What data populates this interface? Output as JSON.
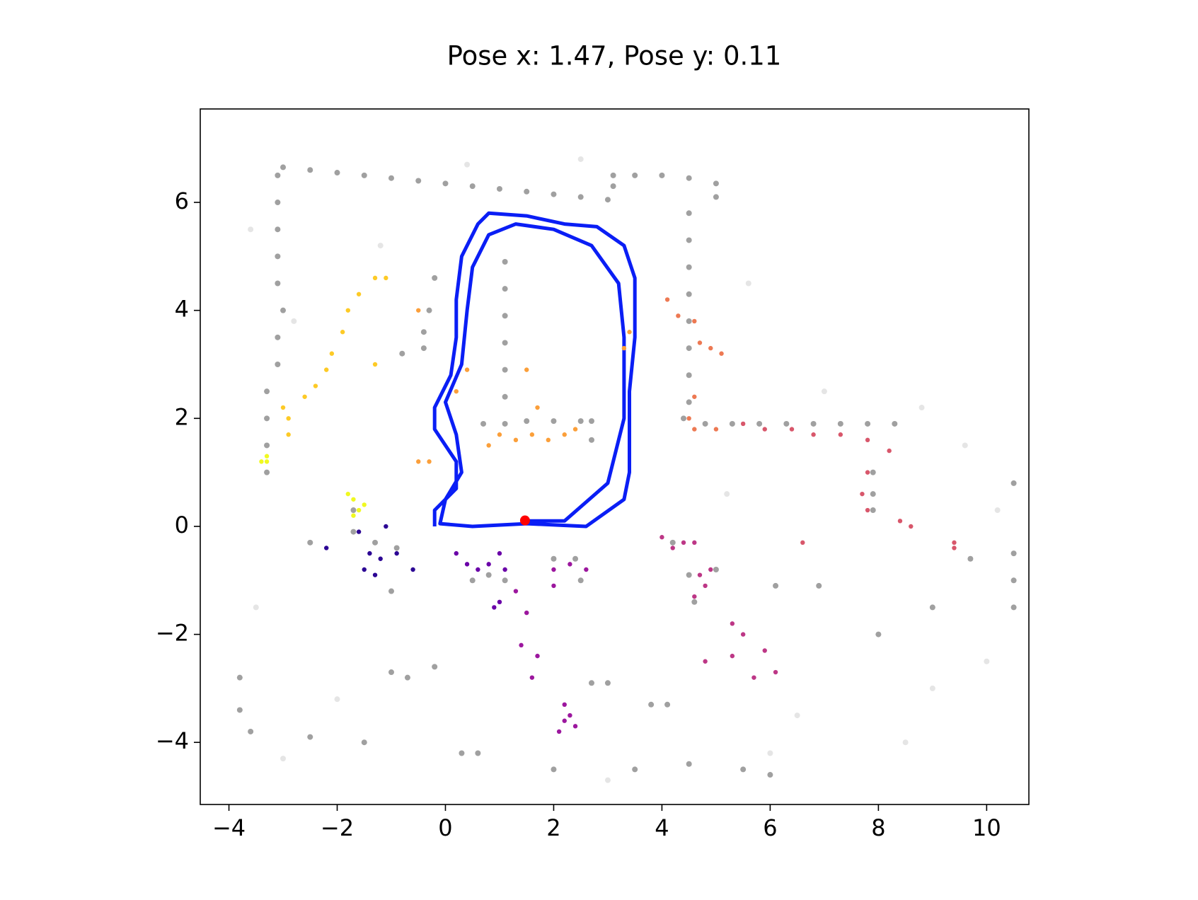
{
  "chart_data": {
    "type": "scatter",
    "title": "Pose x: 1.47, Pose y: 0.11",
    "xlim": [
      -4.53,
      10.78
    ],
    "ylim": [
      -5.15,
      7.73
    ],
    "xticks": [
      {
        "value": -4,
        "label": "−4"
      },
      {
        "value": -2,
        "label": "−2"
      },
      0,
      2,
      4,
      6,
      8,
      10
    ],
    "yticks": [
      {
        "value": -4,
        "label": "−4"
      },
      {
        "value": -2,
        "label": "−2"
      },
      0,
      2,
      4,
      6
    ],
    "series": [
      {
        "kind": "map",
        "color": "#dcdcdc",
        "x": [
          -3.6,
          -2.8,
          -1.2,
          0.4,
          2.5,
          5.6,
          7.0,
          8.8,
          9.6,
          10.2,
          -3.5,
          -2.0,
          6.5,
          9.0,
          10.0,
          -3.0,
          3.0,
          6.0,
          8.5,
          5.2
        ],
        "y": [
          5.5,
          3.8,
          5.2,
          6.7,
          6.8,
          4.5,
          2.5,
          2.2,
          1.5,
          0.3,
          -1.5,
          -3.2,
          -3.5,
          -3.0,
          -2.5,
          -4.3,
          -4.7,
          -4.2,
          -4.0,
          0.6
        ]
      },
      {
        "kind": "map",
        "color": "#808080",
        "x": [
          -3,
          -2.5,
          -2,
          -1.5,
          -1,
          -0.5,
          0,
          0.5,
          1,
          1.5,
          2,
          2.5,
          3.0,
          3.1,
          3.1,
          3.5,
          4.0,
          4.5,
          5.0,
          5.0,
          -3.1,
          -3.1,
          -3.1,
          -3.1,
          -3.1,
          -3.0,
          -3.1,
          -3.1,
          -3.3,
          -3.3,
          -3.3,
          -3.3,
          4.5,
          4.5,
          4.5,
          4.5,
          4.5,
          4.5,
          4.5,
          4.5,
          4.4,
          4.8,
          5.3,
          5.8,
          6.3,
          6.8,
          7.3,
          7.8,
          8.3,
          1.1,
          1.1,
          1.1,
          1.1,
          1.1,
          1.1,
          1.1,
          0.7,
          1.5,
          2.0,
          2.5,
          2.7,
          2.7,
          7.9,
          7.9,
          7.9,
          -0.4,
          -0.4,
          -0.8,
          -0.3,
          -0.2,
          -1.7,
          -1.7,
          -1.3,
          -0.9,
          -2.5,
          -1.0,
          0.5,
          0.8,
          1.1,
          2.0,
          2.4,
          2.5,
          4.2,
          4.5,
          4.6,
          5.0,
          6.1,
          -1.0,
          -0.7,
          -0.2,
          2.7,
          3.0,
          3.8,
          4.1,
          -3.8,
          -3.8,
          -3.6,
          -2.5,
          -1.5,
          0.3,
          0.6,
          2.0,
          3.5,
          4.5,
          5.5,
          6.0,
          10.5,
          10.5,
          10.5,
          10.5,
          9.7,
          9.0,
          8.0,
          6.9
        ],
        "y": [
          6.65,
          6.6,
          6.55,
          6.5,
          6.45,
          6.4,
          6.35,
          6.3,
          6.25,
          6.2,
          6.15,
          6.1,
          6.05,
          6.3,
          6.5,
          6.5,
          6.5,
          6.45,
          6.35,
          6.1,
          6.5,
          6.0,
          5.5,
          5.0,
          4.5,
          4.0,
          3.5,
          3.0,
          2.5,
          2.0,
          1.5,
          1.0,
          5.8,
          5.3,
          4.8,
          4.3,
          3.8,
          3.3,
          2.8,
          2.3,
          2.0,
          1.9,
          1.9,
          1.9,
          1.9,
          1.9,
          1.9,
          1.9,
          1.9,
          4.9,
          4.4,
          3.9,
          3.4,
          2.9,
          2.4,
          1.9,
          1.9,
          1.95,
          1.95,
          1.95,
          1.95,
          1.6,
          1.0,
          0.6,
          0.3,
          3.6,
          3.3,
          3.2,
          4.0,
          4.6,
          0.3,
          -0.1,
          -0.3,
          -0.4,
          -0.3,
          -1.2,
          -1.0,
          -0.9,
          -1.0,
          -0.6,
          -0.6,
          -1.0,
          -0.3,
          -0.9,
          -1.4,
          -0.8,
          -1.1,
          -2.7,
          -2.8,
          -2.6,
          -2.9,
          -2.9,
          -3.3,
          -3.3,
          -2.8,
          -3.4,
          -3.8,
          -3.9,
          -4.0,
          -4.2,
          -4.2,
          -4.5,
          -4.5,
          -4.4,
          -4.5,
          -4.6,
          -0.5,
          -1.0,
          -1.5,
          0.8,
          -0.6,
          -1.5,
          -2.0,
          -1.1
        ]
      },
      {
        "kind": "line",
        "color": "#0a1ef5",
        "x": [
          -0.2,
          -0.2,
          0.2,
          0.2,
          -0.2,
          -0.2,
          0.1,
          0.2,
          0.2,
          0.3,
          0.6,
          0.8,
          1.5,
          2.2,
          2.8,
          3.3,
          3.5,
          3.5,
          3.4,
          3.4,
          3.3,
          2.6,
          1.5,
          0.5,
          -0.1,
          0.0,
          0.3,
          0.2,
          0.0,
          0.3,
          0.4,
          0.5,
          0.8,
          1.3,
          2.0,
          2.7,
          3.2,
          3.3,
          3.3,
          3.0,
          2.2,
          1.5
        ],
        "y": [
          0.0,
          0.3,
          0.7,
          1.2,
          1.8,
          2.2,
          2.8,
          3.5,
          4.2,
          5.0,
          5.6,
          5.8,
          5.75,
          5.6,
          5.55,
          5.2,
          4.6,
          3.5,
          2.5,
          1.0,
          0.5,
          0.0,
          0.05,
          0.0,
          0.05,
          0.5,
          1.0,
          1.7,
          2.3,
          3.0,
          4.0,
          4.8,
          5.4,
          5.6,
          5.5,
          5.2,
          4.5,
          3.5,
          2.0,
          0.8,
          0.1,
          0.1
        ]
      },
      {
        "kind": "points",
        "color": "#f0f921",
        "x": [
          -3.3,
          -3.3,
          -3.4,
          -1.8,
          -1.7,
          -1.6,
          -1.7,
          -1.5
        ],
        "y": [
          1.2,
          1.3,
          1.2,
          0.6,
          0.5,
          0.3,
          0.2,
          0.4
        ]
      },
      {
        "kind": "points",
        "color": "#fdca26",
        "x": [
          -2.9,
          -2.9,
          -3.0,
          -2.6,
          -2.4,
          -2.2,
          -2.1,
          -1.9,
          -1.8,
          -1.6,
          -1.3,
          -1.1,
          -1.3
        ],
        "y": [
          1.7,
          2.0,
          2.2,
          2.4,
          2.6,
          2.9,
          3.2,
          3.6,
          4.0,
          4.3,
          4.6,
          4.6,
          3.0
        ]
      },
      {
        "kind": "points",
        "color": "#fb9f3a",
        "x": [
          -0.5,
          -0.3,
          -0.5,
          0.4,
          0.2,
          1.0,
          1.3,
          1.6,
          1.9,
          2.2,
          2.4,
          1.7,
          1.5,
          0.8,
          3.3,
          3.4
        ],
        "y": [
          1.2,
          1.2,
          4.0,
          2.9,
          2.5,
          1.7,
          1.6,
          1.7,
          1.6,
          1.7,
          1.8,
          2.2,
          2.9,
          1.5,
          3.3,
          3.6
        ]
      },
      {
        "kind": "points",
        "color": "#ed7953",
        "x": [
          4.1,
          4.3,
          4.6,
          4.7,
          4.9,
          5.1,
          4.6,
          4.5,
          4.6,
          5.0
        ],
        "y": [
          4.2,
          3.9,
          3.8,
          3.4,
          3.3,
          3.2,
          2.4,
          2.0,
          1.8,
          1.8
        ]
      },
      {
        "kind": "points",
        "color": "#d8576b",
        "x": [
          5.5,
          5.9,
          6.4,
          6.8,
          7.3,
          7.8,
          8.2,
          7.8,
          7.7,
          7.8,
          8.4,
          8.6,
          9.4,
          9.4,
          6.6
        ],
        "y": [
          1.9,
          1.8,
          1.8,
          1.7,
          1.7,
          1.6,
          1.4,
          1.0,
          0.6,
          0.3,
          0.1,
          0.0,
          -0.3,
          -0.4,
          -0.3
        ]
      },
      {
        "kind": "points",
        "color": "#bd3786",
        "x": [
          4.0,
          4.2,
          4.4,
          4.6,
          4.7,
          4.9,
          4.8,
          4.6,
          5.3,
          5.5,
          5.3,
          5.7,
          5.9,
          6.1,
          4.8
        ],
        "y": [
          -0.2,
          -0.4,
          -0.3,
          -0.3,
          -0.9,
          -0.8,
          -1.1,
          -1.3,
          -1.8,
          -2.0,
          -2.4,
          -2.8,
          -2.3,
          -2.7,
          -2.5
        ]
      },
      {
        "kind": "points",
        "color": "#9c179e",
        "x": [
          2.0,
          2.3,
          2.6,
          2.0,
          1.3,
          1.5,
          1.4,
          1.7,
          1.6,
          2.2,
          2.3,
          2.1,
          2.2,
          2.4
        ],
        "y": [
          -0.8,
          -0.7,
          -0.8,
          -1.1,
          -1.2,
          -1.6,
          -2.2,
          -2.4,
          -2.8,
          -3.3,
          -3.5,
          -3.8,
          -3.6,
          -3.7
        ]
      },
      {
        "kind": "points",
        "color": "#6a00a8",
        "x": [
          0.2,
          0.4,
          0.6,
          0.8,
          1.0,
          1.1,
          1.0,
          0.9
        ],
        "y": [
          -0.5,
          -0.7,
          -0.8,
          -0.7,
          -0.5,
          -0.8,
          -1.4,
          -1.5
        ]
      },
      {
        "kind": "points",
        "color": "#2c0594",
        "x": [
          -2.2,
          -1.6,
          -1.4,
          -1.2,
          -1.5,
          -1.3,
          -0.9,
          -0.6,
          -1.1
        ],
        "y": [
          -0.4,
          -0.1,
          -0.5,
          -0.6,
          -0.8,
          -0.9,
          -0.5,
          -0.8,
          0.0
        ]
      },
      {
        "kind": "pose",
        "color": "#ff0000",
        "x": [
          1.47
        ],
        "y": [
          0.11
        ]
      }
    ]
  }
}
